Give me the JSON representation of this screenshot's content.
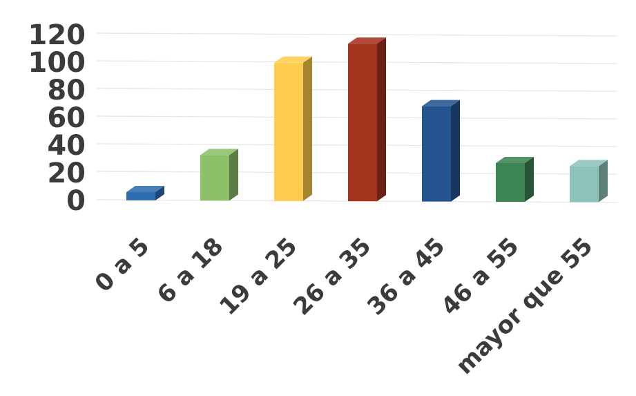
{
  "chart_data": {
    "type": "bar",
    "style": "3d-column",
    "categories": [
      "0 a 5",
      "6 a 18",
      "19 a 25",
      "26 a 35",
      "36 a 45",
      "46 a 55",
      "mayor que 55"
    ],
    "values": [
      6,
      33,
      100,
      114,
      69,
      28,
      26
    ],
    "colors": [
      "#2e6bb0",
      "#8cc169",
      "#ffcc4d",
      "#a5341e",
      "#245591",
      "#3a8553",
      "#8dc3bb"
    ],
    "y_ticks": [
      "0",
      "20",
      "40",
      "60",
      "80",
      "100",
      "120"
    ],
    "ylim": [
      0,
      120
    ],
    "grid": true,
    "legend": "none"
  }
}
